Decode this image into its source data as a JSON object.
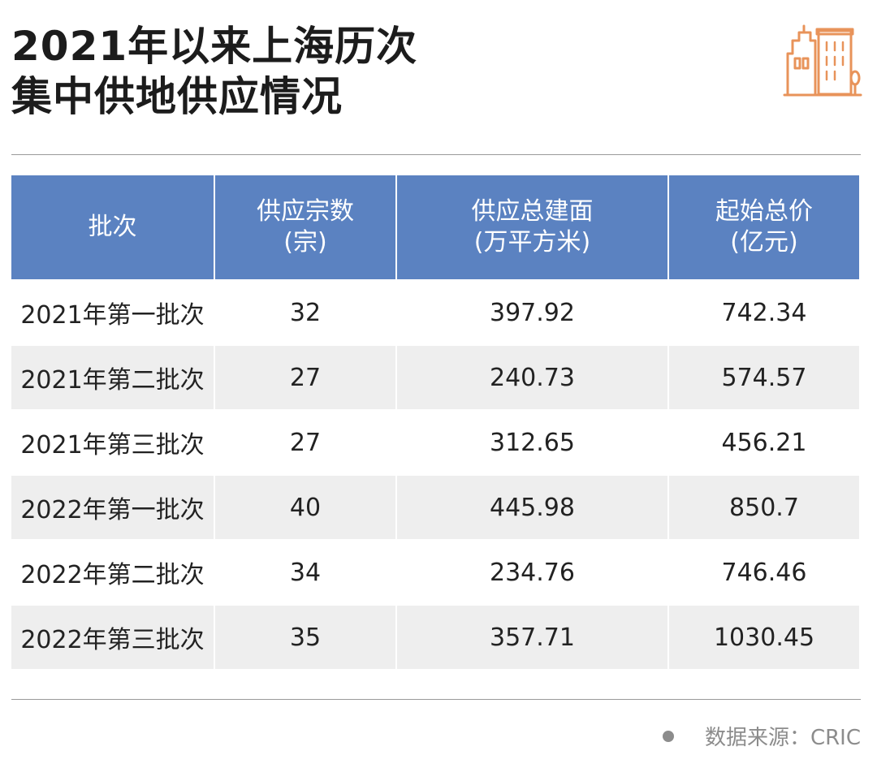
{
  "title": {
    "line1": "2021年以来上海历次",
    "line2": "集中供地供应情况"
  },
  "logo_icon": "buildings-icon",
  "accent_color": "#e8935a",
  "header_color": "#5b82c1",
  "source": {
    "label": "数据来源：CRIC"
  },
  "chart_data": {
    "type": "table",
    "columns": [
      {
        "line1": "批次",
        "line2": ""
      },
      {
        "line1": "供应宗数",
        "line2": "(宗)"
      },
      {
        "line1": "供应总建面",
        "line2": "(万平方米)"
      },
      {
        "line1": "起始总价",
        "line2": "(亿元)"
      }
    ],
    "rows": [
      {
        "batch": "2021年第一批次",
        "parcels": "32",
        "area": "397.92",
        "price": "742.34"
      },
      {
        "batch": "2021年第二批次",
        "parcels": "27",
        "area": "240.73",
        "price": "574.57"
      },
      {
        "batch": "2021年第三批次",
        "parcels": "27",
        "area": "312.65",
        "price": "456.21"
      },
      {
        "batch": "2022年第一批次",
        "parcels": "40",
        "area": "445.98",
        "price": "850.7"
      },
      {
        "batch": "2022年第二批次",
        "parcels": "34",
        "area": "234.76",
        "price": "746.46"
      },
      {
        "batch": "2022年第三批次",
        "parcels": "35",
        "area": "357.71",
        "price": "1030.45"
      }
    ]
  }
}
